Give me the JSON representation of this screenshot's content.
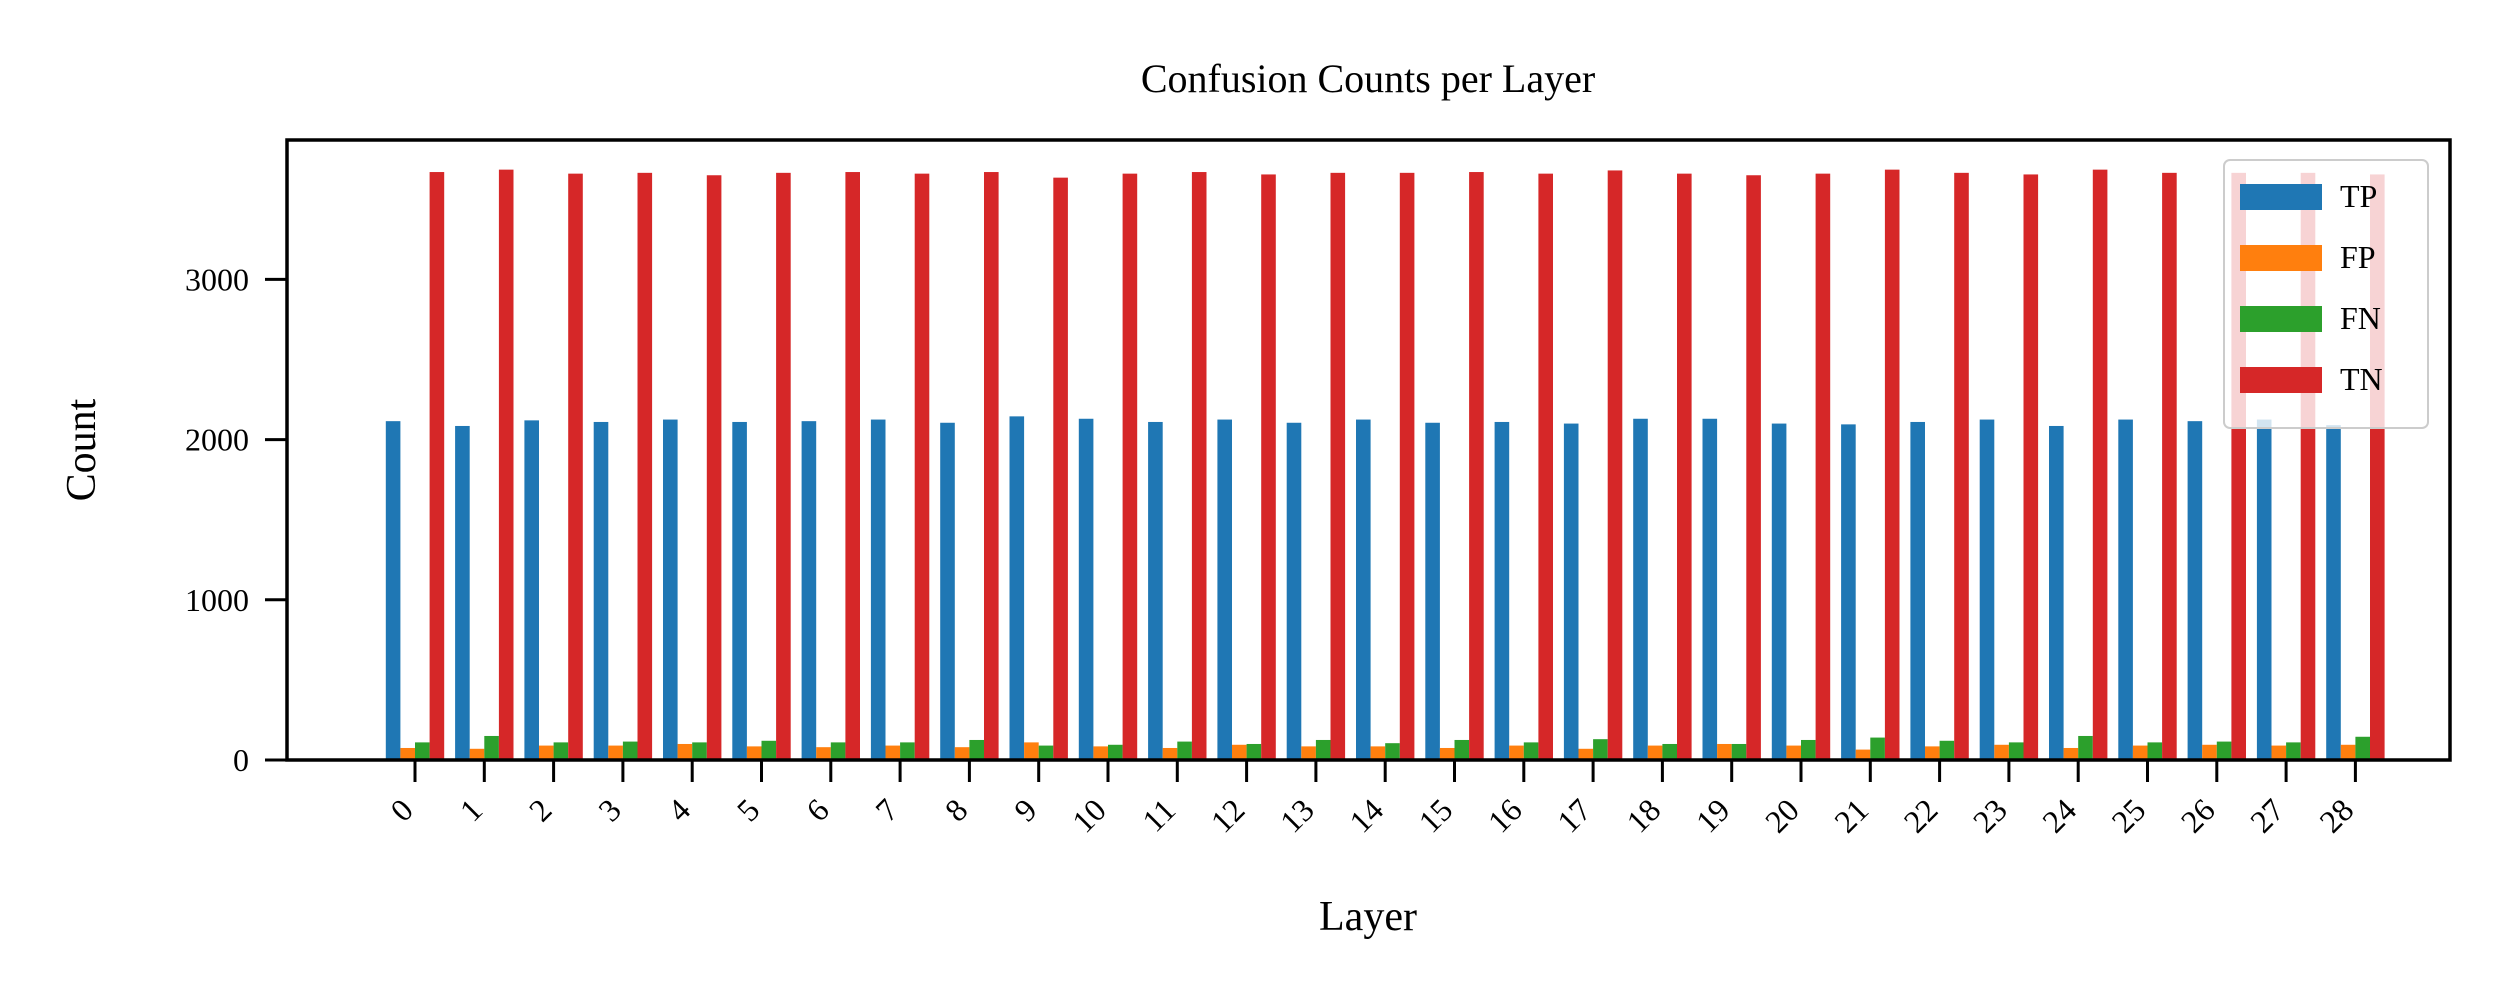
{
  "chart_data": {
    "type": "bar",
    "title": "Confusion Counts per Layer",
    "xlabel": "Layer",
    "ylabel": "Count",
    "ylim": [
      0,
      3870
    ],
    "yticks": [
      0,
      1000,
      2000,
      3000
    ],
    "grid": false,
    "legend_position": "top-right",
    "categories": [
      "0",
      "1",
      "2",
      "3",
      "4",
      "5",
      "6",
      "7",
      "8",
      "9",
      "10",
      "11",
      "12",
      "13",
      "14",
      "15",
      "16",
      "17",
      "18",
      "19",
      "20",
      "21",
      "22",
      "23",
      "24",
      "25",
      "26",
      "27",
      "28"
    ],
    "series": [
      {
        "name": "TP",
        "color": "#1f77b4",
        "values": [
          2115,
          2085,
          2120,
          2110,
          2125,
          2110,
          2115,
          2125,
          2105,
          2145,
          2130,
          2110,
          2125,
          2105,
          2125,
          2105,
          2110,
          2100,
          2130,
          2130,
          2100,
          2095,
          2110,
          2125,
          2085,
          2125,
          2115,
          2125,
          2090
        ]
      },
      {
        "name": "FP",
        "color": "#ff7f0e",
        "values": [
          75,
          70,
          90,
          90,
          100,
          85,
          80,
          90,
          80,
          110,
          85,
          75,
          95,
          85,
          85,
          75,
          90,
          70,
          90,
          100,
          90,
          65,
          85,
          95,
          75,
          90,
          95,
          90,
          95
        ]
      },
      {
        "name": "FN",
        "color": "#2ca02c",
        "values": [
          110,
          150,
          110,
          115,
          110,
          120,
          110,
          110,
          125,
          90,
          95,
          115,
          100,
          125,
          105,
          125,
          110,
          130,
          100,
          100,
          125,
          140,
          120,
          110,
          150,
          110,
          115,
          110,
          145
        ]
      },
      {
        "name": "TN",
        "color": "#d62728",
        "values": [
          3670,
          3685,
          3660,
          3665,
          3650,
          3665,
          3670,
          3660,
          3670,
          3635,
          3660,
          3670,
          3655,
          3665,
          3665,
          3670,
          3660,
          3680,
          3660,
          3650,
          3660,
          3685,
          3665,
          3655,
          3685,
          3665,
          3665,
          3665,
          3655
        ]
      }
    ]
  }
}
